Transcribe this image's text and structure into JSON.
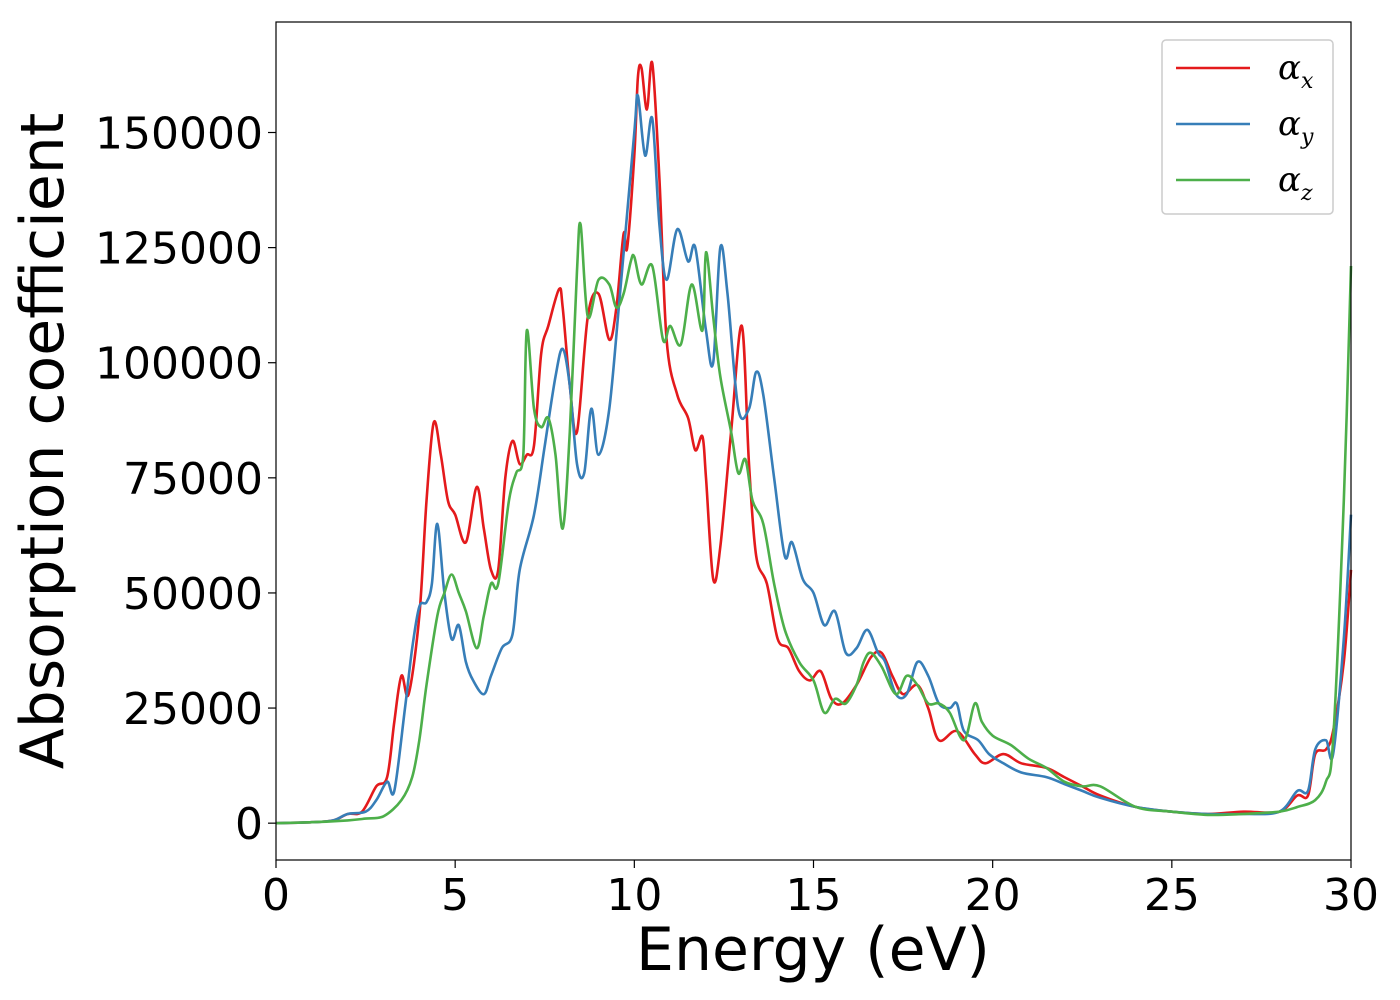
{
  "chart_data": {
    "type": "line",
    "title": "",
    "xlabel": "Energy (eV)",
    "ylabel": "Absorption coefficient",
    "xlim": [
      0,
      30
    ],
    "ylim": [
      -8000,
      174000
    ],
    "xticks": [
      0,
      5,
      10,
      15,
      20,
      25,
      30
    ],
    "yticks": [
      0,
      25000,
      50000,
      75000,
      100000,
      125000,
      150000
    ],
    "grid": false,
    "legend_position": "top-right",
    "series": [
      {
        "name": "αx",
        "base": "α",
        "sub": "x",
        "color": "#e41a1c",
        "points": [
          [
            0,
            0
          ],
          [
            1,
            200
          ],
          [
            1.6,
            600
          ],
          [
            2,
            2000
          ],
          [
            2.4,
            2500
          ],
          [
            2.8,
            8000
          ],
          [
            3.1,
            10000
          ],
          [
            3.3,
            22000
          ],
          [
            3.5,
            32000
          ],
          [
            3.7,
            28000
          ],
          [
            4,
            45000
          ],
          [
            4.2,
            70000
          ],
          [
            4.4,
            87000
          ],
          [
            4.6,
            80000
          ],
          [
            4.8,
            70000
          ],
          [
            5,
            67000
          ],
          [
            5.3,
            61000
          ],
          [
            5.6,
            73000
          ],
          [
            5.8,
            64000
          ],
          [
            6,
            55000
          ],
          [
            6.2,
            55000
          ],
          [
            6.4,
            75000
          ],
          [
            6.6,
            83000
          ],
          [
            6.8,
            78000
          ],
          [
            7,
            80000
          ],
          [
            7.2,
            82000
          ],
          [
            7.4,
            102000
          ],
          [
            7.6,
            108000
          ],
          [
            7.9,
            116000
          ],
          [
            8,
            112000
          ],
          [
            8.2,
            95000
          ],
          [
            8.4,
            85000
          ],
          [
            8.7,
            110000
          ],
          [
            9,
            115000
          ],
          [
            9.3,
            105000
          ],
          [
            9.5,
            112000
          ],
          [
            9.7,
            128000
          ],
          [
            9.8,
            125000
          ],
          [
            10,
            145000
          ],
          [
            10.1,
            162000
          ],
          [
            10.2,
            164000
          ],
          [
            10.35,
            155000
          ],
          [
            10.5,
            165000
          ],
          [
            10.7,
            140000
          ],
          [
            10.9,
            105000
          ],
          [
            11.2,
            93000
          ],
          [
            11.5,
            88000
          ],
          [
            11.7,
            81000
          ],
          [
            11.9,
            84000
          ],
          [
            12,
            75000
          ],
          [
            12.2,
            53000
          ],
          [
            12.4,
            60000
          ],
          [
            12.7,
            85000
          ],
          [
            13,
            108000
          ],
          [
            13.2,
            78000
          ],
          [
            13.4,
            58000
          ],
          [
            13.7,
            52000
          ],
          [
            14,
            40000
          ],
          [
            14.3,
            38000
          ],
          [
            14.6,
            33000
          ],
          [
            14.9,
            31000
          ],
          [
            15.2,
            33000
          ],
          [
            15.5,
            27000
          ],
          [
            15.8,
            26000
          ],
          [
            16.2,
            30000
          ],
          [
            16.6,
            36000
          ],
          [
            16.9,
            37000
          ],
          [
            17.2,
            32000
          ],
          [
            17.5,
            28000
          ],
          [
            17.9,
            30000
          ],
          [
            18.2,
            25000
          ],
          [
            18.5,
            18000
          ],
          [
            19,
            20000
          ],
          [
            19.5,
            15000
          ],
          [
            19.8,
            13000
          ],
          [
            20.3,
            15000
          ],
          [
            20.8,
            13000
          ],
          [
            21.5,
            12000
          ],
          [
            22,
            10000
          ],
          [
            22.5,
            8000
          ],
          [
            23,
            6000
          ],
          [
            24,
            3500
          ],
          [
            25,
            2500
          ],
          [
            26,
            2000
          ],
          [
            27,
            2500
          ],
          [
            28,
            2500
          ],
          [
            28.5,
            6000
          ],
          [
            28.8,
            6000
          ],
          [
            29,
            15000
          ],
          [
            29.3,
            16000
          ],
          [
            29.5,
            20000
          ],
          [
            29.8,
            35000
          ],
          [
            30,
            55000
          ]
        ]
      },
      {
        "name": "αy",
        "base": "α",
        "sub": "y",
        "color": "#377eb8",
        "points": [
          [
            0,
            0
          ],
          [
            1,
            200
          ],
          [
            1.6,
            600
          ],
          [
            2,
            2000
          ],
          [
            2.5,
            2500
          ],
          [
            2.8,
            5000
          ],
          [
            3.1,
            9000
          ],
          [
            3.3,
            7000
          ],
          [
            3.6,
            25000
          ],
          [
            3.8,
            38000
          ],
          [
            4,
            47000
          ],
          [
            4.2,
            48000
          ],
          [
            4.35,
            52000
          ],
          [
            4.5,
            65000
          ],
          [
            4.7,
            50000
          ],
          [
            4.9,
            40000
          ],
          [
            5.1,
            43000
          ],
          [
            5.3,
            35000
          ],
          [
            5.5,
            31000
          ],
          [
            5.8,
            28000
          ],
          [
            6,
            32000
          ],
          [
            6.3,
            38000
          ],
          [
            6.6,
            41000
          ],
          [
            6.8,
            55000
          ],
          [
            7.2,
            67000
          ],
          [
            7.5,
            82000
          ],
          [
            7.8,
            97000
          ],
          [
            8,
            103000
          ],
          [
            8.2,
            95000
          ],
          [
            8.4,
            78000
          ],
          [
            8.6,
            76000
          ],
          [
            8.8,
            90000
          ],
          [
            9,
            80000
          ],
          [
            9.3,
            90000
          ],
          [
            9.6,
            115000
          ],
          [
            10,
            150000
          ],
          [
            10.1,
            158000
          ],
          [
            10.3,
            145000
          ],
          [
            10.5,
            153000
          ],
          [
            10.7,
            130000
          ],
          [
            10.9,
            118000
          ],
          [
            11.2,
            129000
          ],
          [
            11.5,
            122000
          ],
          [
            11.7,
            125000
          ],
          [
            12,
            107000
          ],
          [
            12.2,
            100000
          ],
          [
            12.4,
            125000
          ],
          [
            12.6,
            115000
          ],
          [
            12.9,
            90000
          ],
          [
            13.2,
            90000
          ],
          [
            13.4,
            98000
          ],
          [
            13.6,
            93000
          ],
          [
            13.9,
            75000
          ],
          [
            14.2,
            58000
          ],
          [
            14.4,
            61000
          ],
          [
            14.7,
            53000
          ],
          [
            15,
            50000
          ],
          [
            15.3,
            43000
          ],
          [
            15.6,
            46000
          ],
          [
            15.9,
            37000
          ],
          [
            16.2,
            38000
          ],
          [
            16.5,
            42000
          ],
          [
            16.8,
            37000
          ],
          [
            17,
            35000
          ],
          [
            17.3,
            28000
          ],
          [
            17.6,
            28000
          ],
          [
            17.9,
            35000
          ],
          [
            18.2,
            32000
          ],
          [
            18.5,
            26000
          ],
          [
            18.8,
            25000
          ],
          [
            19,
            26000
          ],
          [
            19.2,
            20000
          ],
          [
            19.6,
            18000
          ],
          [
            19.9,
            15000
          ],
          [
            20.3,
            13000
          ],
          [
            20.8,
            11000
          ],
          [
            21.5,
            10000
          ],
          [
            22,
            8500
          ],
          [
            22.5,
            7000
          ],
          [
            23,
            5500
          ],
          [
            24,
            3500
          ],
          [
            25,
            2500
          ],
          [
            26,
            2000
          ],
          [
            27,
            2000
          ],
          [
            28,
            2500
          ],
          [
            28.5,
            7000
          ],
          [
            28.8,
            7000
          ],
          [
            29,
            16000
          ],
          [
            29.3,
            18000
          ],
          [
            29.5,
            15000
          ],
          [
            29.8,
            40000
          ],
          [
            30,
            67000
          ]
        ]
      },
      {
        "name": "αz",
        "base": "α",
        "sub": "z",
        "color": "#4daf4a",
        "points": [
          [
            0,
            0
          ],
          [
            1,
            200
          ],
          [
            2,
            600
          ],
          [
            2.5,
            1000
          ],
          [
            3,
            1500
          ],
          [
            3.5,
            5000
          ],
          [
            3.8,
            10000
          ],
          [
            4,
            18000
          ],
          [
            4.2,
            30000
          ],
          [
            4.5,
            45000
          ],
          [
            4.7,
            50000
          ],
          [
            4.9,
            54000
          ],
          [
            5.1,
            50000
          ],
          [
            5.3,
            46000
          ],
          [
            5.6,
            38000
          ],
          [
            5.8,
            45000
          ],
          [
            6,
            52000
          ],
          [
            6.2,
            52000
          ],
          [
            6.5,
            70000
          ],
          [
            6.7,
            76000
          ],
          [
            6.9,
            80000
          ],
          [
            7,
            107000
          ],
          [
            7.2,
            90000
          ],
          [
            7.4,
            86000
          ],
          [
            7.6,
            88000
          ],
          [
            7.8,
            80000
          ],
          [
            8,
            64000
          ],
          [
            8.2,
            85000
          ],
          [
            8.4,
            120000
          ],
          [
            8.5,
            130000
          ],
          [
            8.7,
            110000
          ],
          [
            9,
            118000
          ],
          [
            9.3,
            117000
          ],
          [
            9.5,
            112000
          ],
          [
            9.7,
            115000
          ],
          [
            9.9,
            122000
          ],
          [
            10,
            123000
          ],
          [
            10.2,
            117000
          ],
          [
            10.5,
            121000
          ],
          [
            10.8,
            105000
          ],
          [
            11,
            108000
          ],
          [
            11.3,
            104000
          ],
          [
            11.6,
            117000
          ],
          [
            11.9,
            107000
          ],
          [
            12,
            124000
          ],
          [
            12.2,
            110000
          ],
          [
            12.4,
            97000
          ],
          [
            12.7,
            85000
          ],
          [
            12.9,
            76000
          ],
          [
            13.1,
            79000
          ],
          [
            13.3,
            70000
          ],
          [
            13.6,
            65000
          ],
          [
            13.9,
            52000
          ],
          [
            14.2,
            42000
          ],
          [
            14.6,
            35000
          ],
          [
            15,
            31000
          ],
          [
            15.3,
            24000
          ],
          [
            15.6,
            27000
          ],
          [
            15.9,
            26000
          ],
          [
            16.2,
            30000
          ],
          [
            16.4,
            35000
          ],
          [
            16.6,
            37000
          ],
          [
            16.9,
            34000
          ],
          [
            17.3,
            28000
          ],
          [
            17.6,
            32000
          ],
          [
            17.9,
            30000
          ],
          [
            18.2,
            26000
          ],
          [
            18.5,
            26000
          ],
          [
            18.8,
            24000
          ],
          [
            19.2,
            18000
          ],
          [
            19.5,
            26000
          ],
          [
            19.7,
            22000
          ],
          [
            20,
            19000
          ],
          [
            20.5,
            17000
          ],
          [
            21,
            14000
          ],
          [
            21.5,
            12000
          ],
          [
            22,
            9000
          ],
          [
            22.5,
            8000
          ],
          [
            23,
            8000
          ],
          [
            24,
            3500
          ],
          [
            25,
            2500
          ],
          [
            26,
            1800
          ],
          [
            27,
            2000
          ],
          [
            28,
            2500
          ],
          [
            28.5,
            3500
          ],
          [
            29,
            5000
          ],
          [
            29.3,
            9000
          ],
          [
            29.5,
            18000
          ],
          [
            29.8,
            70000
          ],
          [
            30,
            121000
          ]
        ]
      }
    ]
  }
}
